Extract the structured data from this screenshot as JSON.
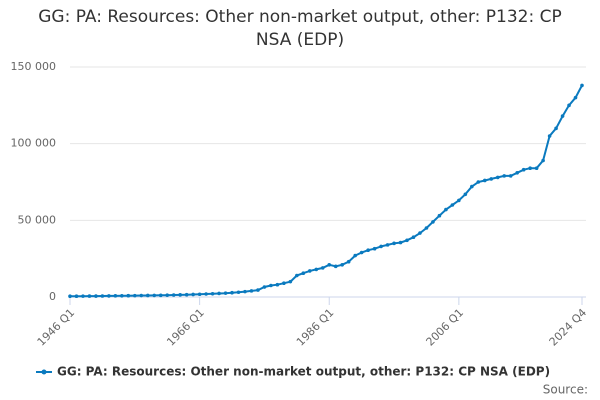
{
  "chart_data": {
    "type": "line",
    "title": "GG: PA: Resources: Other non-market output, other: P132: CP NSA (EDP)",
    "source": "Source:",
    "categories": [
      "1946 Q1",
      null,
      null,
      null,
      null,
      null,
      null,
      null,
      null,
      null,
      null,
      null,
      null,
      null,
      null,
      null,
      null,
      null,
      null,
      null,
      "1966 Q1",
      null,
      null,
      null,
      null,
      null,
      null,
      null,
      null,
      null,
      null,
      null,
      null,
      null,
      null,
      null,
      null,
      null,
      null,
      null,
      "1986 Q1",
      null,
      null,
      null,
      null,
      null,
      null,
      null,
      null,
      null,
      null,
      null,
      null,
      null,
      null,
      null,
      null,
      null,
      null,
      null,
      "2006 Q1",
      null,
      null,
      null,
      null,
      null,
      null,
      null,
      null,
      null,
      null,
      null,
      null,
      null,
      null,
      null,
      null,
      null,
      null,
      "2024 Q4"
    ],
    "series": [
      {
        "name": "GG: PA: Resources: Other non-market output, other: P132: CP NSA (EDP)",
        "color": "#0a7abf",
        "values": [
          500,
          520,
          550,
          580,
          600,
          650,
          700,
          750,
          800,
          850,
          900,
          950,
          1000,
          1050,
          1100,
          1200,
          1300,
          1400,
          1500,
          1650,
          1800,
          1950,
          2100,
          2300,
          2500,
          2800,
          3100,
          3500,
          4000,
          4500,
          6500,
          7500,
          8000,
          9000,
          10000,
          14000,
          15500,
          17000,
          18000,
          19000,
          21000,
          20000,
          21000,
          23000,
          27000,
          29000,
          30500,
          31500,
          33000,
          34000,
          35000,
          35500,
          37000,
          39000,
          41700,
          45000,
          49000,
          53000,
          57000,
          60000,
          63000,
          67000,
          72000,
          75000,
          76000,
          77000,
          78000,
          79000,
          79000,
          81000,
          83000,
          84000,
          84000,
          89000,
          105000,
          110000,
          118000,
          125000,
          130000,
          138000
        ]
      }
    ],
    "ylim": [
      0,
      150000
    ],
    "yticks": [
      0,
      {
        "value": 50000,
        "label": "50 000"
      },
      {
        "value": 100000,
        "label": "100 000"
      },
      {
        "value": 150000,
        "label": "150 000"
      }
    ],
    "grid": true
  }
}
